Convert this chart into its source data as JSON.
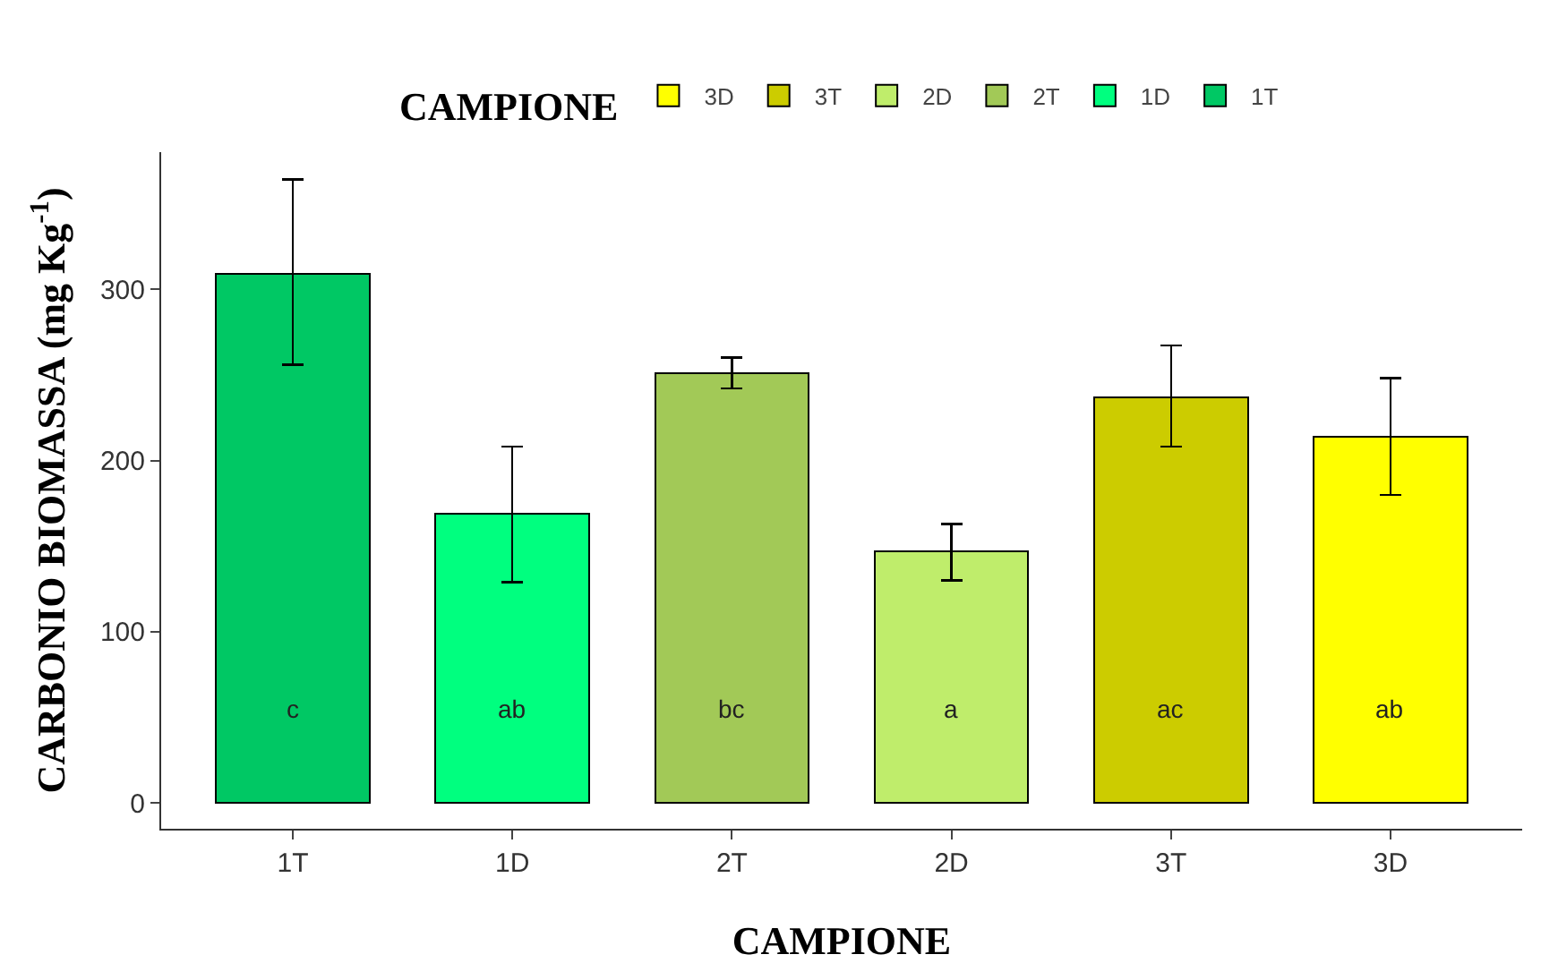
{
  "chart_data": {
    "type": "bar",
    "xlabel": "CAMPIONE",
    "ylabel": "CARBONIO BIOMASSA (mg Kg$^{-1}$)",
    "legend_title": "CAMPIONE",
    "legend": "top",
    "stacked": true,
    "categories": [
      "1T",
      "1D",
      "2T",
      "2D",
      "3T",
      "3D"
    ],
    "series": [
      {
        "name": "1T",
        "color": "#00c864",
        "values": [
          309,
          null,
          null,
          null,
          null,
          null
        ],
        "errors": [
          [
            256,
            364
          ],
          null,
          null,
          null,
          null,
          null
        ]
      },
      {
        "name": "1D",
        "color": "#00ff7f",
        "values": [
          null,
          169,
          null,
          null,
          null,
          null
        ],
        "errors": [
          null,
          [
            129,
            208
          ],
          null,
          null,
          null,
          null
        ]
      },
      {
        "name": "2T",
        "color": "#a2c957",
        "values": [
          null,
          null,
          251,
          null,
          null,
          null
        ],
        "errors": [
          null,
          null,
          [
            242,
            260
          ],
          null,
          null,
          null
        ]
      },
      {
        "name": "2D",
        "color": "#bfed6b",
        "values": [
          null,
          null,
          null,
          147,
          null,
          null
        ],
        "errors": [
          null,
          null,
          null,
          [
            130,
            163
          ],
          null,
          null
        ]
      },
      {
        "name": "3T",
        "color": "#cccc00",
        "values": [
          null,
          null,
          null,
          null,
          237,
          null
        ],
        "errors": [
          null,
          null,
          null,
          null,
          [
            208,
            267
          ],
          null
        ]
      },
      {
        "name": "3D",
        "color": "#ffff00",
        "values": [
          null,
          null,
          null,
          null,
          null,
          214
        ],
        "errors": [
          null,
          null,
          null,
          null,
          null,
          [
            180,
            248
          ]
        ]
      }
    ],
    "ylim": [
      -15,
      380
    ],
    "yticks": [
      0,
      100,
      200,
      300
    ],
    "grid": false,
    "annotations": [
      "c",
      "ab",
      "bc",
      "a",
      "ac",
      "ab"
    ]
  }
}
